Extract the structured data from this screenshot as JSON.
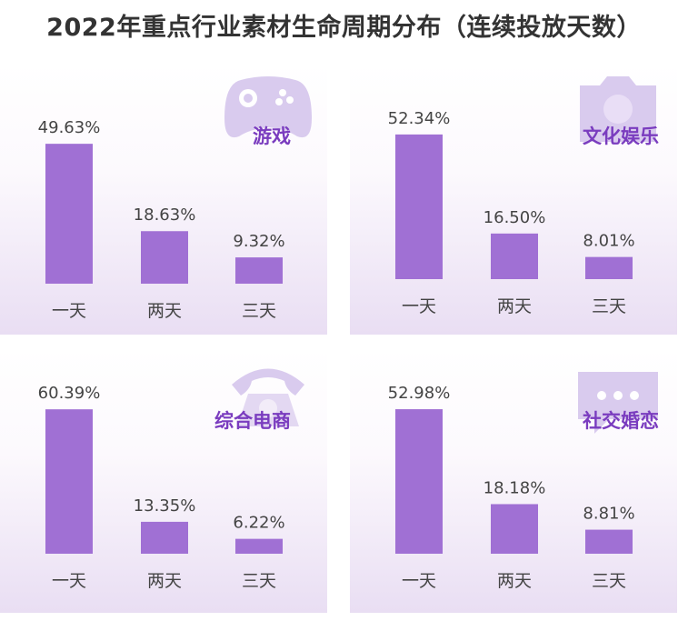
{
  "title": "2022年重点行业素材生命周期分布（连续投放天数）",
  "chart_data": [
    {
      "type": "bar",
      "title": "游戏",
      "icon": "gamepad-icon",
      "categories": [
        "一天",
        "两天",
        "三天"
      ],
      "values": [
        49.63,
        18.63,
        9.32
      ],
      "labels": [
        "49.63%",
        "18.63%",
        "9.32%"
      ]
    },
    {
      "type": "bar",
      "title": "文化娱乐",
      "icon": "camera-icon",
      "categories": [
        "一天",
        "两天",
        "三天"
      ],
      "values": [
        52.34,
        16.5,
        8.01
      ],
      "labels": [
        "52.34%",
        "16.50%",
        "8.01%"
      ]
    },
    {
      "type": "bar",
      "title": "综合电商",
      "icon": "phone-icon",
      "categories": [
        "一天",
        "两天",
        "三天"
      ],
      "values": [
        60.39,
        13.35,
        6.22
      ],
      "labels": [
        "60.39%",
        "13.35%",
        "6.22%"
      ]
    },
    {
      "type": "bar",
      "title": "社交婚恋",
      "icon": "chat-bubble-icon",
      "categories": [
        "一天",
        "两天",
        "三天"
      ],
      "values": [
        52.98,
        18.18,
        8.81
      ],
      "labels": [
        "52.98%",
        "18.18%",
        "8.81%"
      ]
    }
  ],
  "colors": {
    "bar": "#a070d4",
    "category": "#7a3cbf",
    "text": "#333333"
  }
}
